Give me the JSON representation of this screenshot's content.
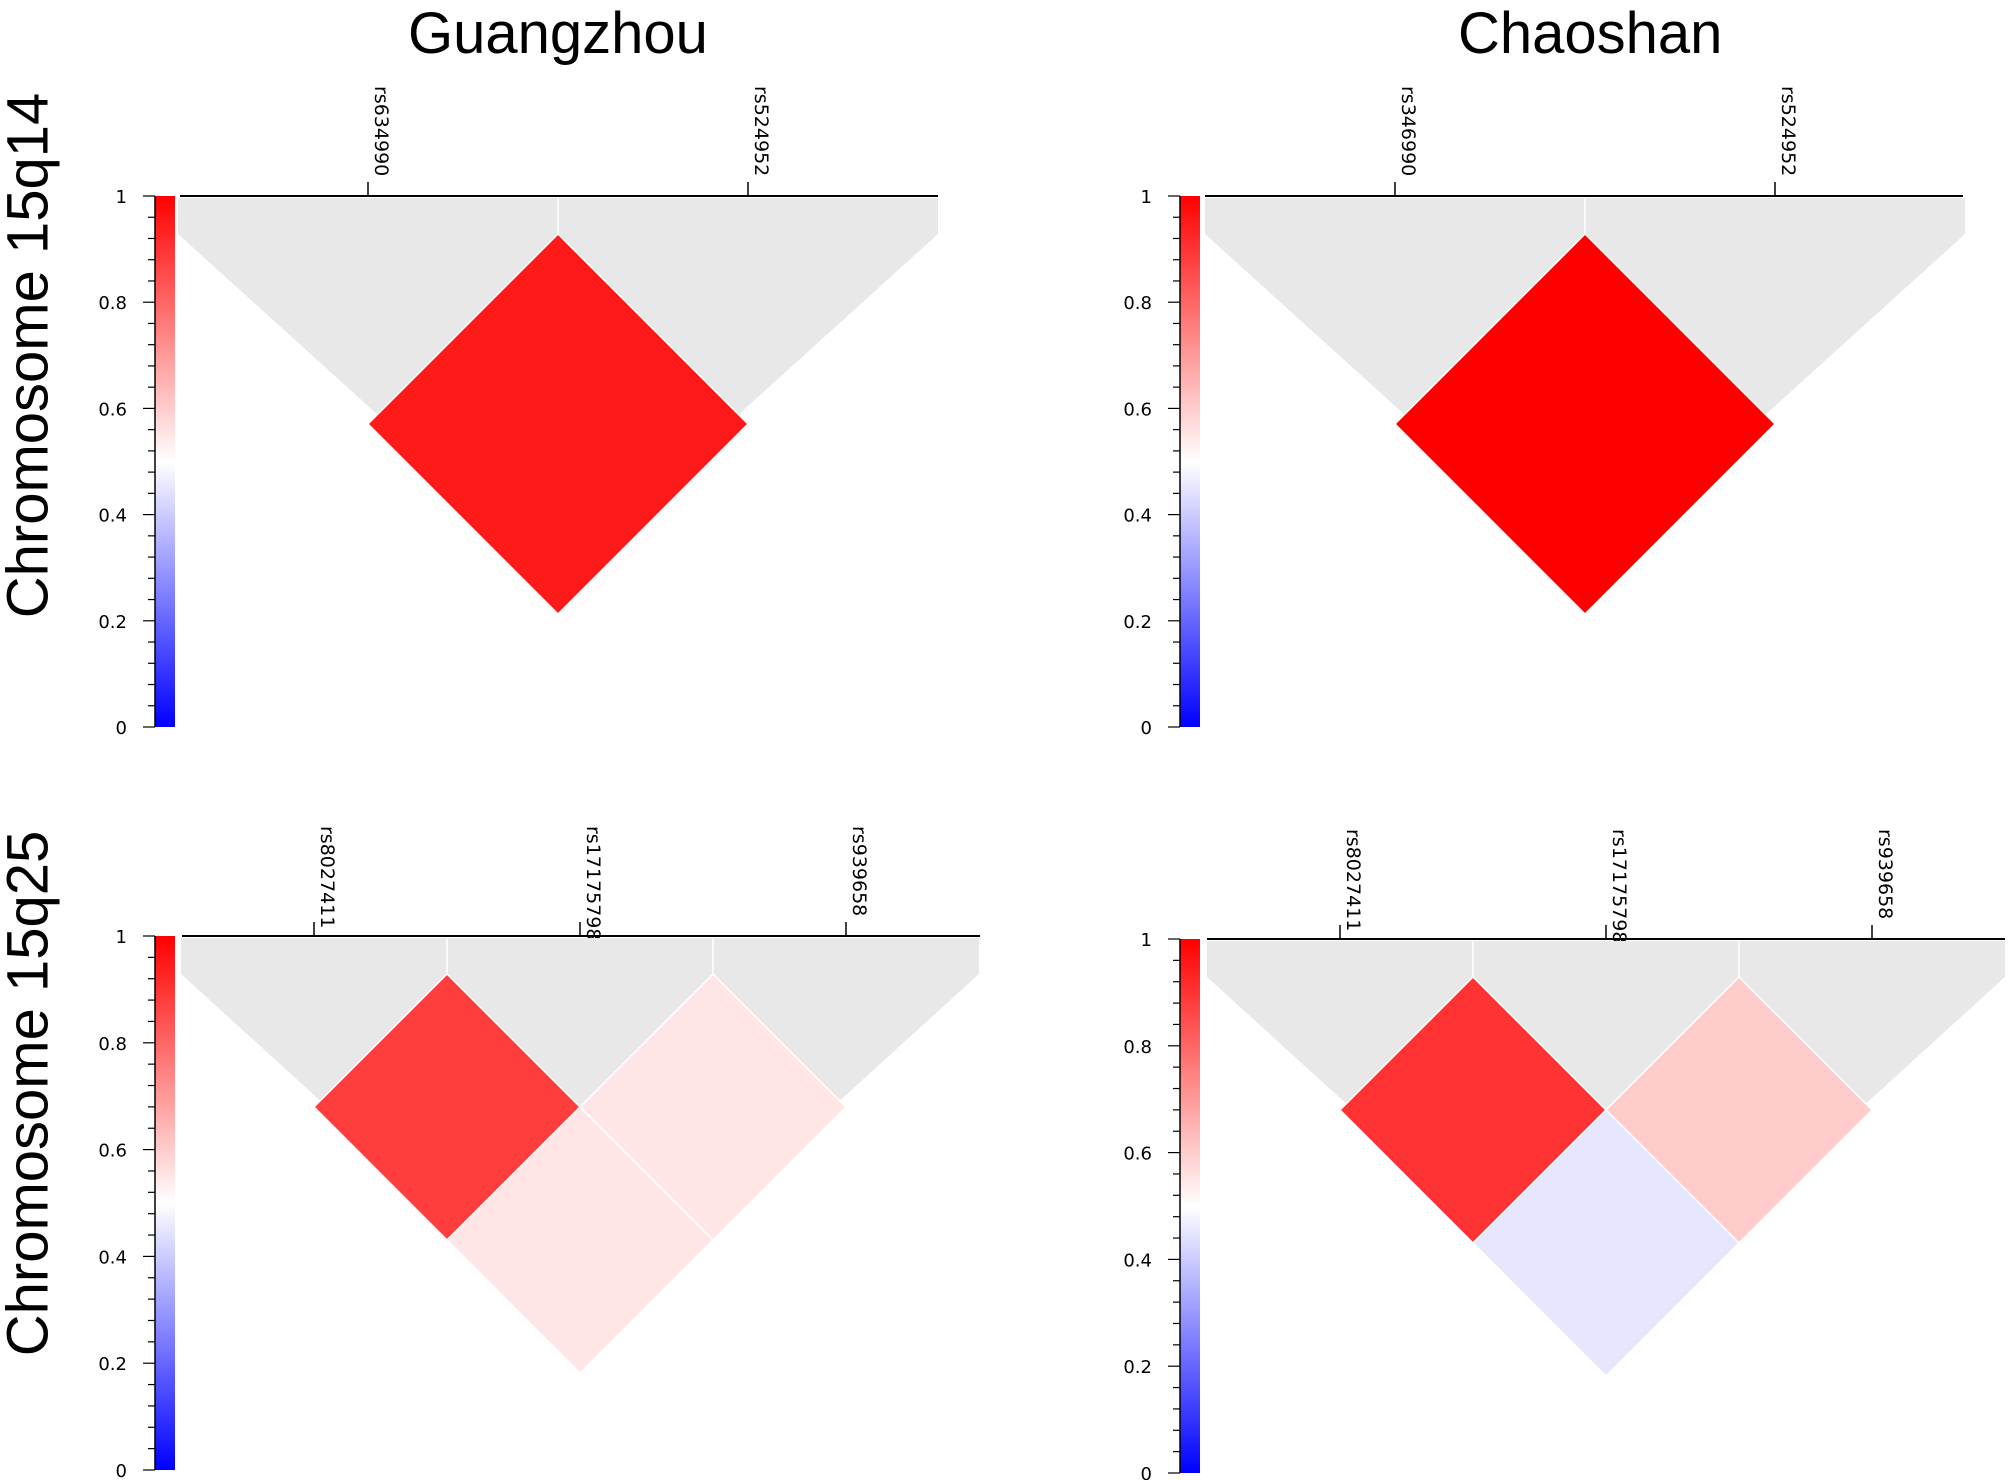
{
  "columns": [
    "Guangzhou",
    "Chaoshan"
  ],
  "rows": [
    "Chromosome 15q14",
    "Chromosome 15q25"
  ],
  "colors": {
    "high": "#ff0000",
    "mid": "#ffffff",
    "low": "#0000ff",
    "empty": "#e8e8e8",
    "axis": "#000000"
  },
  "chart_data": [
    {
      "type": "heatmap",
      "population": "Guangzhou",
      "region": "Chromosome 15q14",
      "snps": [
        "rs634990",
        "rs524952"
      ],
      "colorbar": {
        "min": 0,
        "max": 1,
        "ticks": [
          "0",
          "0.2",
          "0.4",
          "0.6",
          "0.8",
          "1"
        ]
      },
      "pairs": [
        {
          "snp1": "rs634990",
          "snp2": "rs524952",
          "value": 0.95
        }
      ]
    },
    {
      "type": "heatmap",
      "population": "Chaoshan",
      "region": "Chromosome 15q14",
      "snps": [
        "rs346990",
        "rs524952"
      ],
      "colorbar": {
        "min": 0,
        "max": 1,
        "ticks": [
          "0",
          "0.2",
          "0.4",
          "0.6",
          "0.8",
          "1"
        ]
      },
      "pairs": [
        {
          "snp1": "rs346990",
          "snp2": "rs524952",
          "value": 1.0
        }
      ]
    },
    {
      "type": "heatmap",
      "population": "Guangzhou",
      "region": "Chromosome 15q25",
      "snps": [
        "rs8027411",
        "rs17175798",
        "rs939658"
      ],
      "colorbar": {
        "min": 0,
        "max": 1,
        "ticks": [
          "0",
          "0.2",
          "0.4",
          "0.6",
          "0.8",
          "1"
        ]
      },
      "pairs": [
        {
          "snp1": "rs8027411",
          "snp2": "rs17175798",
          "value": 0.88
        },
        {
          "snp1": "rs17175798",
          "snp2": "rs939658",
          "value": 0.55
        },
        {
          "snp1": "rs8027411",
          "snp2": "rs939658",
          "value": 0.55
        }
      ]
    },
    {
      "type": "heatmap",
      "population": "Chaoshan",
      "region": "Chromosome 15q25",
      "snps": [
        "rs8027411",
        "rs17175798",
        "rs939658"
      ],
      "colorbar": {
        "min": 0,
        "max": 1,
        "ticks": [
          "0",
          "0.2",
          "0.4",
          "0.6",
          "0.8",
          "1"
        ]
      },
      "pairs": [
        {
          "snp1": "rs8027411",
          "snp2": "rs17175798",
          "value": 0.9
        },
        {
          "snp1": "rs17175798",
          "snp2": "rs939658",
          "value": 0.6
        },
        {
          "snp1": "rs8027411",
          "snp2": "rs939658",
          "value": 0.45
        }
      ]
    }
  ]
}
